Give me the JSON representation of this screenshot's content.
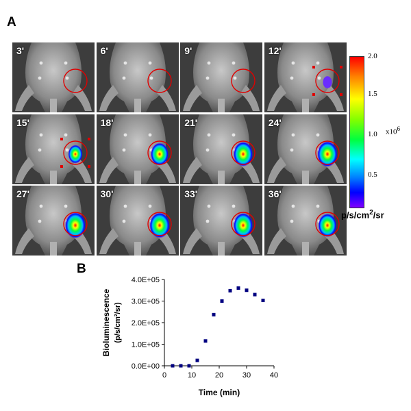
{
  "figure": {
    "panel_a_label": "A",
    "panel_b_label": "B"
  },
  "panel_a": {
    "frames": [
      "3'",
      "6'",
      "9'",
      "12'",
      "15'",
      "18'",
      "21'",
      "24'",
      "27'",
      "30'",
      "33'",
      "36'"
    ],
    "signal_level": [
      0,
      0,
      0,
      0.15,
      0.55,
      0.8,
      0.92,
      0.97,
      1.0,
      0.97,
      0.92,
      0.85
    ],
    "colorbar": {
      "ticks": [
        "2.0",
        "1.5",
        "1.0",
        "0.5"
      ],
      "exponent_base": "x10",
      "exponent_power": "6",
      "unit_prefix": "p/s/cm",
      "unit_power": "2",
      "unit_suffix": "/sr",
      "colors": [
        "#ff0000",
        "#ff8000",
        "#ffff00",
        "#80ff00",
        "#00ff40",
        "#00ffff",
        "#0080ff",
        "#0000ff",
        "#8000ff"
      ]
    },
    "roi_color": "#e00000"
  },
  "chart_data": {
    "type": "scatter",
    "xlabel": "Time (min)",
    "ylabel_line1": "Bioluminescence",
    "ylabel_line2": "(p/s/cm²/sr)",
    "xlim": [
      0,
      40
    ],
    "ylim": [
      0,
      400000
    ],
    "x_ticks": [
      0,
      10,
      20,
      30,
      40
    ],
    "y_ticks": [
      0,
      100000,
      200000,
      300000,
      400000
    ],
    "x_tick_labels": [
      "0",
      "10",
      "20",
      "30",
      "40"
    ],
    "y_tick_labels": [
      "0.0E+00",
      "1.0E+05",
      "2.0E+05",
      "3.0E+05",
      "4.0E+05"
    ],
    "x": [
      3,
      6,
      9,
      12,
      15,
      18,
      21,
      24,
      27,
      30,
      33,
      36
    ],
    "y": [
      0,
      0,
      0,
      25000,
      115000,
      237000,
      300000,
      348000,
      360000,
      350000,
      330000,
      303000
    ],
    "marker_color": "#000080"
  }
}
